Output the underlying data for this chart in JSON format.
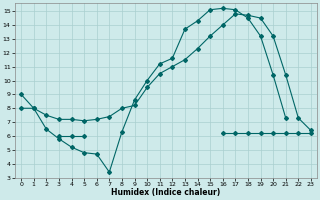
{
  "xlabel": "Humidex (Indice chaleur)",
  "bg_color": "#ceeaea",
  "grid_color": "#aacfcf",
  "line_color": "#006666",
  "xlim": [
    -0.5,
    23.5
  ],
  "ylim": [
    3,
    15.6
  ],
  "xticks": [
    0,
    1,
    2,
    3,
    4,
    5,
    6,
    7,
    8,
    9,
    10,
    11,
    12,
    13,
    14,
    15,
    16,
    17,
    18,
    19,
    20,
    21,
    22,
    23
  ],
  "yticks": [
    3,
    4,
    5,
    6,
    7,
    8,
    9,
    10,
    11,
    12,
    13,
    14,
    15
  ],
  "series1_x": [
    0,
    1,
    2,
    3,
    4,
    5,
    6,
    7,
    8,
    9,
    10,
    11,
    12,
    13,
    14,
    15,
    16,
    17,
    18,
    19,
    20,
    21,
    22,
    23
  ],
  "series1_y": [
    9.0,
    8.0,
    6.5,
    5.8,
    5.2,
    4.8,
    4.7,
    3.4,
    6.3,
    8.6,
    10.0,
    11.2,
    11.6,
    13.7,
    14.3,
    15.1,
    15.2,
    15.1,
    14.5,
    13.2,
    10.4,
    7.3,
    null,
    null
  ],
  "series2_x": [
    0,
    1,
    2,
    3,
    4,
    5,
    6,
    7,
    8,
    9,
    10,
    11,
    12,
    13,
    14,
    15,
    16,
    17,
    18,
    19,
    20,
    21,
    22,
    23
  ],
  "series2_y": [
    8.0,
    8.0,
    7.5,
    7.2,
    7.2,
    7.1,
    7.2,
    7.4,
    8.0,
    8.2,
    9.5,
    10.5,
    11.0,
    11.5,
    12.3,
    13.2,
    14.0,
    14.8,
    14.7,
    14.5,
    13.2,
    10.4,
    7.3,
    6.4
  ],
  "series3_x": [
    0,
    1,
    2,
    3,
    4,
    5,
    6,
    7,
    8,
    9,
    10,
    11,
    12,
    13,
    14,
    15,
    16,
    17,
    18,
    19,
    20,
    21,
    22,
    23
  ],
  "series3_y": [
    null,
    null,
    null,
    6.0,
    6.0,
    6.0,
    null,
    null,
    null,
    null,
    null,
    null,
    null,
    null,
    null,
    null,
    6.2,
    6.2,
    6.2,
    6.2,
    6.2,
    6.2,
    6.2,
    6.2
  ]
}
